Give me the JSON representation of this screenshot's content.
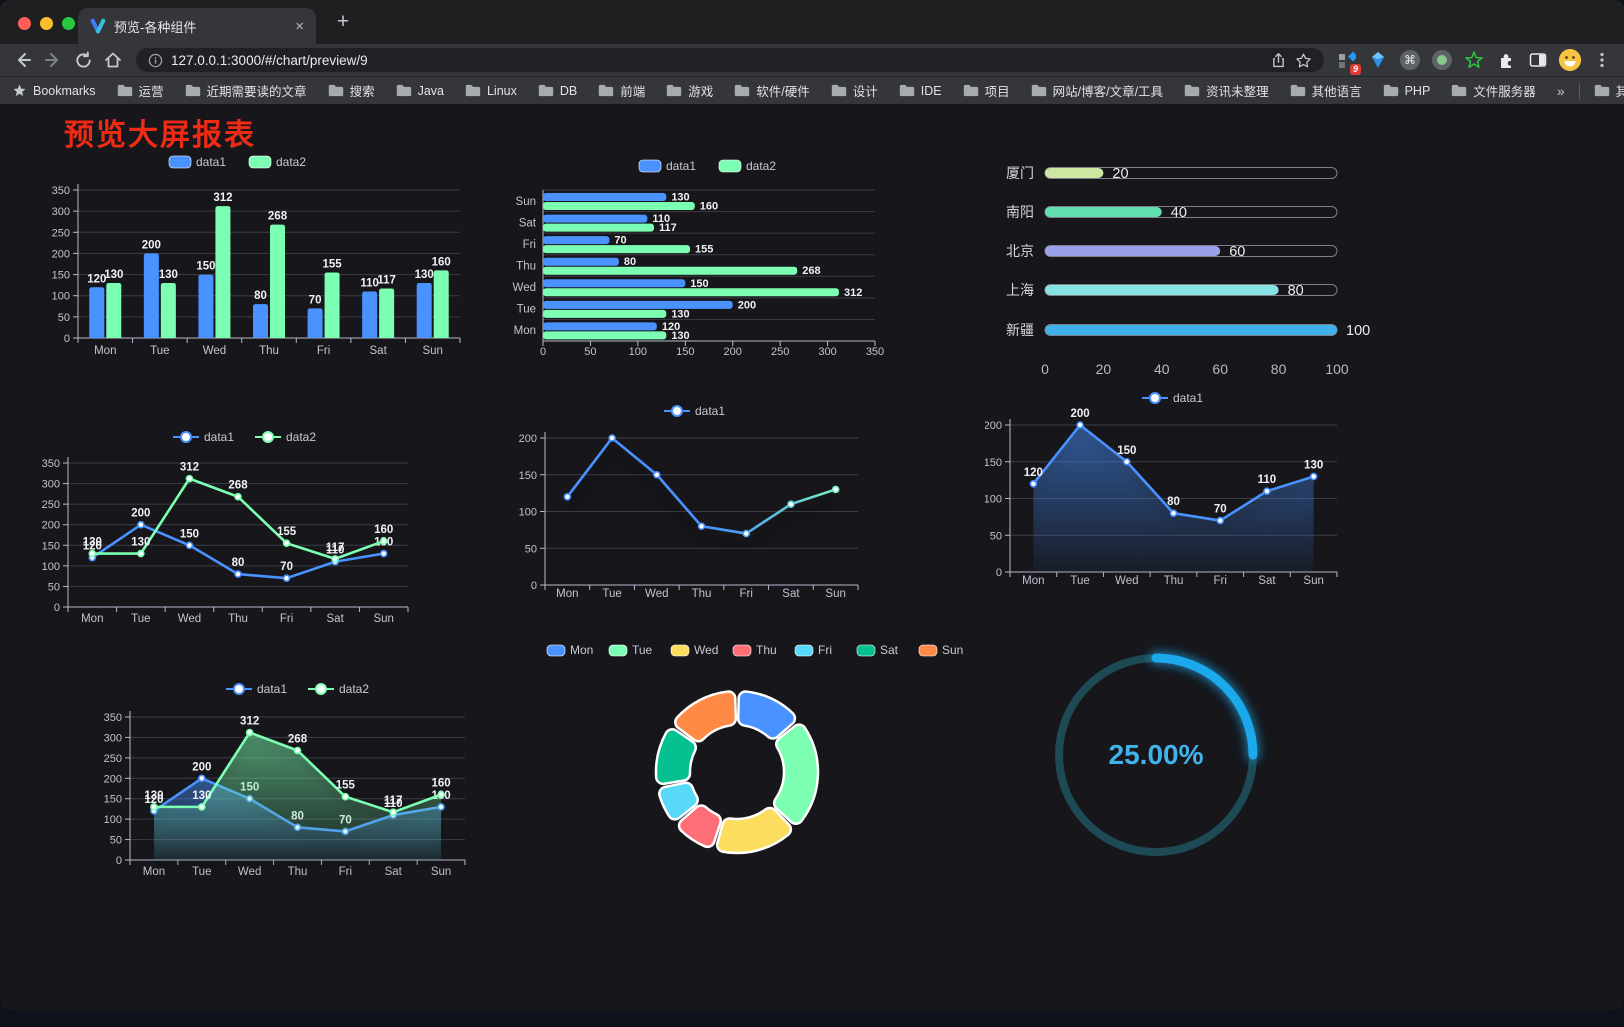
{
  "browser": {
    "tab_title": "预览-各种组件",
    "tab_close_glyph": "×",
    "new_tab_glyph": "+",
    "url": "127.0.0.1:3000/#/chart/preview/9",
    "bookmarks_label": "Bookmarks",
    "bookmarks": [
      "运营",
      "近期需要读的文章",
      "搜索",
      "Java",
      "Linux",
      "DB",
      "前端",
      "游戏",
      "软件/硬件",
      "设计",
      "IDE",
      "项目",
      "网站/博客/文章/工具",
      "资讯未整理",
      "其他语言",
      "PHP",
      "文件服务器"
    ],
    "overflow_glyph": "»",
    "other_bookmarks": "其他书签",
    "extensions_badge": "9"
  },
  "page": {
    "title": "预览大屏报表"
  },
  "theme": {
    "axis_text": "#c3c4d0",
    "axis_line": "#b9b8ce",
    "grid_line": "#3d3d48",
    "value_label": "#f0f1f4",
    "legend_text": "#c8c9d4"
  },
  "chart_data": [
    {
      "id": "c1",
      "type": "bar",
      "categories": [
        "Mon",
        "Tue",
        "Wed",
        "Thu",
        "Fri",
        "Sat",
        "Sun"
      ],
      "series": [
        {
          "name": "data1",
          "color": "#4992ff",
          "values": [
            120,
            200,
            150,
            80,
            70,
            110,
            130
          ]
        },
        {
          "name": "data2",
          "color": "#7cffb2",
          "values": [
            130,
            130,
            312,
            268,
            155,
            117,
            160
          ]
        }
      ],
      "ylim": [
        0,
        350
      ],
      "yticks": [
        0,
        50,
        100,
        150,
        200,
        250,
        300,
        350
      ],
      "legend_position": "top",
      "grid": true,
      "show_labels": true
    },
    {
      "id": "c2",
      "type": "bar-horizontal",
      "categories": [
        "Mon",
        "Tue",
        "Wed",
        "Thu",
        "Fri",
        "Sat",
        "Sun"
      ],
      "series": [
        {
          "name": "data1",
          "color": "#4992ff",
          "values": [
            120,
            200,
            150,
            80,
            70,
            110,
            130
          ]
        },
        {
          "name": "data2",
          "color": "#7cffb2",
          "values": [
            130,
            130,
            312,
            268,
            155,
            117,
            160
          ]
        }
      ],
      "xlim": [
        0,
        350
      ],
      "xticks": [
        0,
        50,
        100,
        150,
        200,
        250,
        300,
        350
      ],
      "legend_position": "top",
      "grid": true,
      "show_labels": true
    },
    {
      "id": "c3",
      "type": "progress-bars",
      "items": [
        {
          "label": "厦门",
          "value": 20,
          "color": "#cde6a2"
        },
        {
          "label": "南阳",
          "value": 40,
          "color": "#5fe0ae"
        },
        {
          "label": "北京",
          "value": 60,
          "color": "#9aa1ea"
        },
        {
          "label": "上海",
          "value": 80,
          "color": "#87e3e3"
        },
        {
          "label": "新疆",
          "value": 100,
          "color": "#3fb0e8"
        }
      ],
      "max": 100,
      "xticks": [
        0,
        20,
        40,
        60,
        80,
        100
      ]
    },
    {
      "id": "c4",
      "type": "line",
      "categories": [
        "Mon",
        "Tue",
        "Wed",
        "Thu",
        "Fri",
        "Sat",
        "Sun"
      ],
      "series": [
        {
          "name": "data1",
          "color": "#4992ff",
          "values": [
            120,
            200,
            150,
            80,
            70,
            110,
            130
          ]
        },
        {
          "name": "data2",
          "color": "#7cffb2",
          "values": [
            130,
            130,
            312,
            268,
            155,
            117,
            160
          ]
        }
      ],
      "ylim": [
        0,
        350
      ],
      "yticks": [
        0,
        50,
        100,
        150,
        200,
        250,
        300,
        350
      ],
      "legend_position": "top",
      "grid": true,
      "show_labels": true
    },
    {
      "id": "c5",
      "type": "line-gradient",
      "categories": [
        "Mon",
        "Tue",
        "Wed",
        "Thu",
        "Fri",
        "Sat",
        "Sun"
      ],
      "series": [
        {
          "name": "data1",
          "gradient": [
            "#4992ff",
            "#7cffb2"
          ],
          "values": [
            120,
            200,
            150,
            80,
            70,
            110,
            130
          ]
        }
      ],
      "ylim": [
        0,
        200
      ],
      "yticks": [
        0,
        50,
        100,
        150,
        200
      ],
      "legend_position": "top",
      "grid": true,
      "show_labels": false
    },
    {
      "id": "c6",
      "type": "area",
      "categories": [
        "Mon",
        "Tue",
        "Wed",
        "Thu",
        "Fri",
        "Sat",
        "Sun"
      ],
      "series": [
        {
          "name": "data1",
          "color": "#4992ff",
          "values": [
            120,
            200,
            150,
            80,
            70,
            110,
            130
          ]
        }
      ],
      "ylim": [
        0,
        200
      ],
      "yticks": [
        0,
        50,
        100,
        150,
        200
      ],
      "legend_position": "top",
      "grid": true,
      "show_labels": true
    },
    {
      "id": "c7",
      "type": "line-area",
      "categories": [
        "Mon",
        "Tue",
        "Wed",
        "Thu",
        "Fri",
        "Sat",
        "Sun"
      ],
      "series": [
        {
          "name": "data1",
          "color": "#4992ff",
          "values": [
            120,
            200,
            150,
            80,
            70,
            110,
            130
          ]
        },
        {
          "name": "data2",
          "color": "#7cffb2",
          "values": [
            130,
            130,
            312,
            268,
            155,
            117,
            160
          ]
        }
      ],
      "ylim": [
        0,
        350
      ],
      "yticks": [
        0,
        50,
        100,
        150,
        200,
        250,
        300,
        350
      ],
      "legend_position": "top",
      "grid": true,
      "show_labels": true
    },
    {
      "id": "c8",
      "type": "pie",
      "labels": [
        "Mon",
        "Tue",
        "Wed",
        "Thu",
        "Fri",
        "Sat",
        "Sun"
      ],
      "values": [
        120,
        200,
        150,
        80,
        70,
        110,
        130
      ],
      "colors": [
        "#4992ff",
        "#7cffb2",
        "#fddd60",
        "#ff6e76",
        "#58d9f9",
        "#05c091",
        "#ff8a45"
      ],
      "legend_position": "top",
      "donut": true,
      "border_color": "#ffffff"
    },
    {
      "id": "c9",
      "type": "gauge",
      "value": 25,
      "label": "25.00%",
      "color": "#1ba9ec",
      "track_color": "#1d4a55",
      "text_color": "#41b2ea"
    }
  ]
}
